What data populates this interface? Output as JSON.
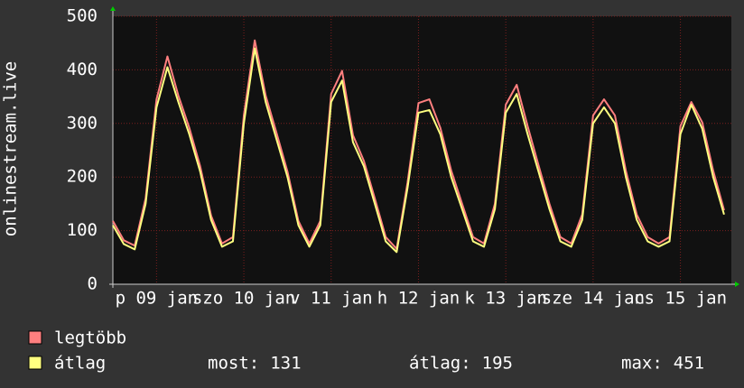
{
  "chart_data": {
    "type": "line",
    "ylabel": "onlinestream.live",
    "x": [
      0,
      3,
      6,
      9,
      12,
      15,
      18,
      21,
      24,
      27,
      30,
      33,
      36,
      39,
      42,
      45,
      48,
      51,
      54,
      57,
      60,
      63,
      66,
      69,
      72,
      75,
      78,
      81,
      84,
      87,
      90,
      93,
      96,
      99,
      102,
      105,
      108,
      111,
      114,
      117,
      120,
      123,
      126,
      129,
      132,
      135,
      138,
      141,
      144,
      147,
      150,
      153,
      156,
      159,
      162,
      165,
      168
    ],
    "series": [
      {
        "name": "legtöbb",
        "color": "#ff7f7f",
        "values": [
          118,
          82,
          72,
          160,
          345,
          425,
          352,
          292,
          220,
          128,
          76,
          88,
          315,
          455,
          352,
          282,
          210,
          118,
          76,
          118,
          355,
          398,
          278,
          230,
          160,
          88,
          66,
          190,
          338,
          345,
          292,
          212,
          150,
          88,
          76,
          150,
          335,
          372,
          295,
          222,
          150,
          88,
          76,
          130,
          315,
          345,
          315,
          212,
          130,
          88,
          76,
          88,
          295,
          340,
          302,
          212,
          138
        ]
      },
      {
        "name": "átlag",
        "color": "#ffff80",
        "values": [
          110,
          75,
          65,
          150,
          330,
          405,
          340,
          280,
          210,
          120,
          70,
          80,
          300,
          440,
          340,
          270,
          200,
          110,
          70,
          110,
          340,
          380,
          265,
          220,
          150,
          80,
          60,
          180,
          320,
          325,
          280,
          200,
          140,
          80,
          70,
          140,
          320,
          355,
          280,
          210,
          140,
          80,
          70,
          120,
          300,
          330,
          300,
          200,
          120,
          80,
          70,
          80,
          280,
          335,
          290,
          200,
          130
        ]
      }
    ],
    "xlim": [
      0,
      170
    ],
    "xticks": [
      {
        "value": 12,
        "label": "p 09 jan"
      },
      {
        "value": 36,
        "label": "szo 10 jan"
      },
      {
        "value": 60,
        "label": "v 11 jan"
      },
      {
        "value": 84,
        "label": "h 12 jan"
      },
      {
        "value": 108,
        "label": "k 13 jan"
      },
      {
        "value": 132,
        "label": "sze 14 jan"
      },
      {
        "value": 156,
        "label": "cs 15 jan"
      }
    ],
    "ylim": [
      0,
      500
    ],
    "yticks": [
      0,
      100,
      200,
      300,
      400,
      500
    ],
    "grid": true,
    "stats": [
      {
        "label": "most:",
        "value": 131
      },
      {
        "label": "átlag:",
        "value": 195
      },
      {
        "label": "max:",
        "value": 451
      }
    ]
  }
}
